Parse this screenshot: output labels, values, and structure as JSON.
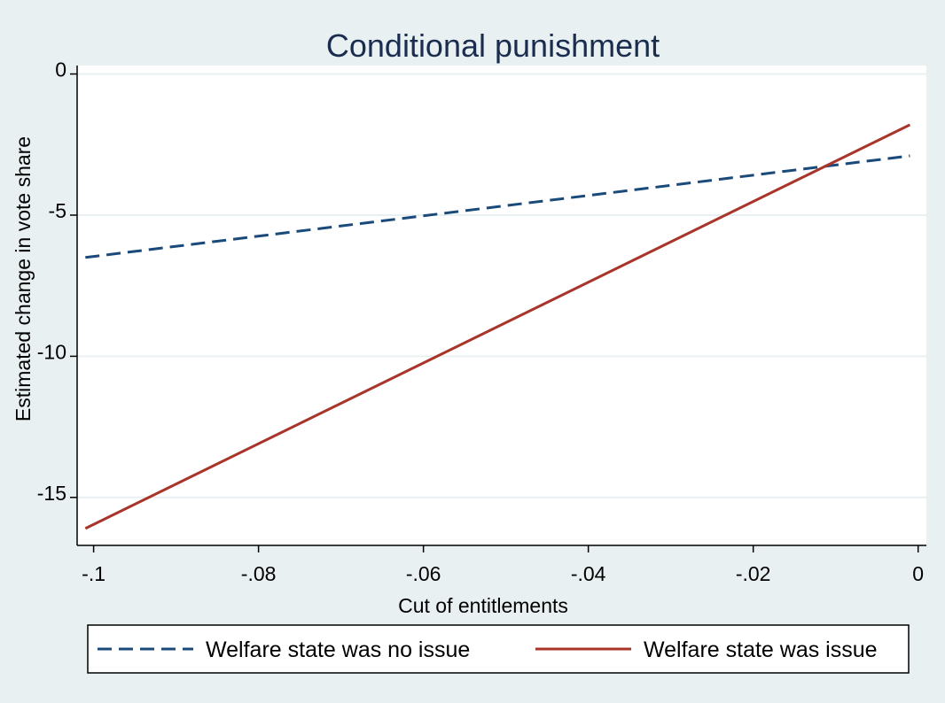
{
  "chart_data": {
    "type": "line",
    "title": "Conditional punishment",
    "xlabel": "Cut of entitlements",
    "ylabel": "Estimated change in vote share",
    "xlim": [
      -0.102,
      0.001
    ],
    "ylim": [
      -16.7,
      0.3
    ],
    "x_ticks": [
      -0.1,
      -0.08,
      -0.06,
      -0.04,
      -0.02,
      0
    ],
    "x_tick_labels": [
      "-.1",
      "-.08",
      "-.06",
      "-.04",
      "-.02",
      "0"
    ],
    "y_ticks": [
      0,
      -5,
      -10,
      -15
    ],
    "y_tick_labels": [
      "0",
      "-5",
      "-10",
      "-15"
    ],
    "grid": "horizontal",
    "legend_position": "bottom",
    "series": [
      {
        "name": "Welfare state was no issue",
        "style": "dashed",
        "color": "#1a4a7a",
        "x": [
          -0.101,
          -0.001
        ],
        "y": [
          -6.5,
          -2.9
        ]
      },
      {
        "name": "Welfare state was issue",
        "style": "solid",
        "color": "#a8342a",
        "x": [
          -0.101,
          -0.001
        ],
        "y": [
          -16.1,
          -1.8
        ]
      }
    ]
  }
}
